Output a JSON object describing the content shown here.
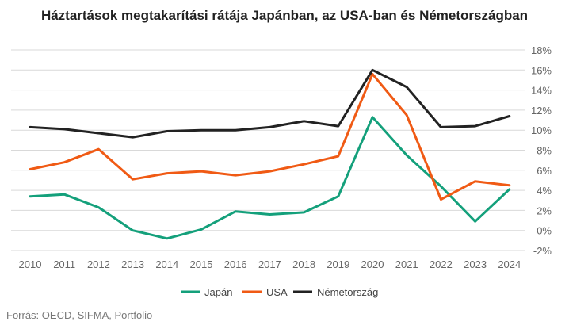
{
  "chart_data": {
    "type": "line",
    "title": "Háztartások megtakarítási rátája Japánban, az USA-ban és Németországban",
    "source": "Forrás: OECD, SIFMA, Portfolio",
    "x": [
      "2010",
      "2011",
      "2012",
      "2013",
      "2014",
      "2015",
      "2016",
      "2017",
      "2018",
      "2019",
      "2020",
      "2021",
      "2022",
      "2023",
      "2024"
    ],
    "y_ticks": [
      "18%",
      "16%",
      "14%",
      "12%",
      "10%",
      "8%",
      "6%",
      "4%",
      "2%",
      "0%",
      "-2%"
    ],
    "ylim": [
      -2,
      18
    ],
    "y_axis_side": "right",
    "grid": "horizontal",
    "legend_position": "bottom-center",
    "series": [
      {
        "name": "Japán",
        "color": "#14a07b",
        "values": [
          3.4,
          3.6,
          2.3,
          0.0,
          -0.8,
          0.1,
          1.9,
          1.6,
          1.8,
          3.4,
          11.3,
          7.5,
          4.4,
          0.9,
          4.1
        ]
      },
      {
        "name": "USA",
        "color": "#f05a14",
        "values": [
          6.1,
          6.8,
          8.1,
          5.1,
          5.7,
          5.9,
          5.5,
          5.9,
          6.6,
          7.4,
          15.6,
          11.5,
          3.1,
          4.9,
          4.5
        ]
      },
      {
        "name": "Németország",
        "color": "#222222",
        "values": [
          10.3,
          10.1,
          9.7,
          9.3,
          9.9,
          10.0,
          10.0,
          10.3,
          10.9,
          10.4,
          16.0,
          14.3,
          10.3,
          10.4,
          11.4
        ]
      }
    ]
  }
}
